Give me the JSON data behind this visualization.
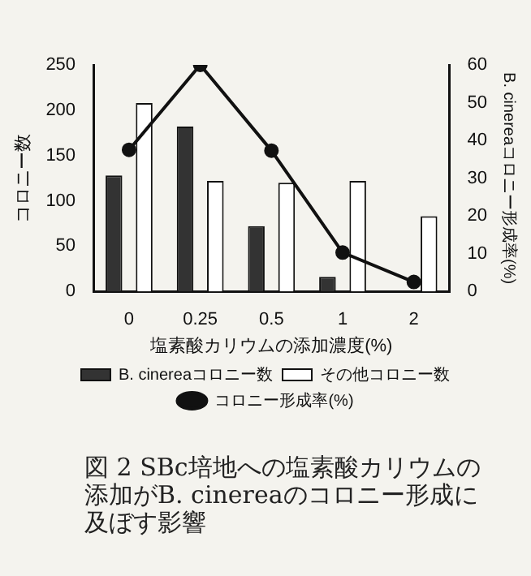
{
  "chart_data": {
    "type": "bar",
    "title": "図 2 SBc培地への塩素酸カリウムの添加がB. cinereaのコロニー形成に及ぼす影響",
    "xlabel": "塩素酸カリウムの添加濃度(%)",
    "ylabel": "コロニー数",
    "y2label": "B. cinereaコロニー形成率(%)",
    "categories": [
      "0",
      "0.25",
      "0.5",
      "1",
      "2"
    ],
    "series": [
      {
        "name": "B. cinereaコロニー数",
        "color": "#333333",
        "values": [
          128,
          182,
          72,
          16,
          0
        ]
      },
      {
        "name": "その他コロニー数",
        "color": "#ffffff",
        "values": [
          208,
          122,
          120,
          122,
          83
        ]
      },
      {
        "name": "コロニー形成率(%)",
        "type": "line",
        "axis": "y2",
        "color": "#111111",
        "marker": "circle",
        "values": [
          37.5,
          60,
          37.3,
          10.3,
          2.5
        ]
      }
    ],
    "ylim": [
      0,
      250
    ],
    "yticks": [
      0,
      50,
      100,
      150,
      200,
      250
    ],
    "y2lim": [
      0,
      60
    ],
    "y2ticks": [
      0,
      10,
      20,
      30,
      40,
      50,
      60
    ],
    "grid": false,
    "legend": "bottom"
  }
}
